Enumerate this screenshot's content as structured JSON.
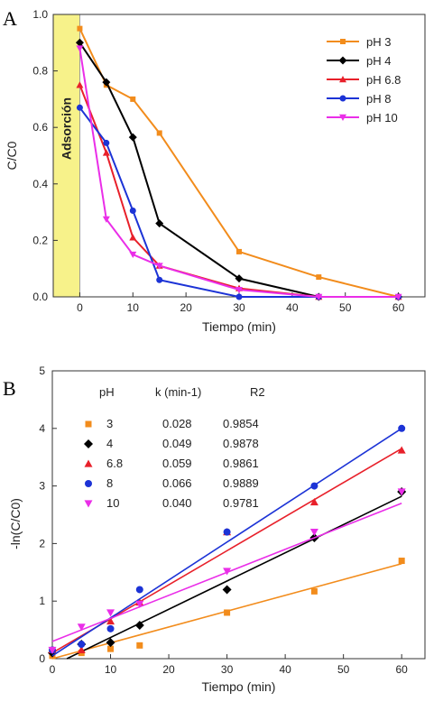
{
  "chart_data": [
    {
      "panel": "A",
      "type": "line",
      "xlabel": "Tiempo (min)",
      "ylabel": "C/C0",
      "xlim": [
        -5,
        65
      ],
      "ylim": [
        0,
        1.0
      ],
      "xticks": [
        0,
        10,
        20,
        30,
        40,
        50,
        60
      ],
      "yticks": [
        0.0,
        0.2,
        0.4,
        0.6,
        0.8,
        1.0
      ],
      "shaded_region": {
        "label": "Adsorción",
        "x_from": -5,
        "x_to": 0,
        "color": "#f7f28a"
      },
      "series": [
        {
          "name": "pH 3",
          "color": "#f28c1c",
          "marker": "square",
          "x": [
            0,
            5,
            10,
            15,
            30,
            45,
            60
          ],
          "y": [
            0.95,
            0.75,
            0.7,
            0.58,
            0.16,
            0.07,
            0.0
          ]
        },
        {
          "name": "pH 4",
          "color": "#000000",
          "marker": "diamond",
          "x": [
            0,
            5,
            10,
            15,
            30,
            45,
            60
          ],
          "y": [
            0.9,
            0.76,
            0.565,
            0.26,
            0.065,
            0.0,
            0.0
          ]
        },
        {
          "name": "pH 6.8",
          "color": "#e8202a",
          "marker": "triangle-up",
          "x": [
            0,
            5,
            10,
            15,
            30,
            45,
            60
          ],
          "y": [
            0.75,
            0.51,
            0.21,
            0.11,
            0.03,
            0.0,
            0.0
          ]
        },
        {
          "name": "pH 8",
          "color": "#1c33d6",
          "marker": "circle",
          "x": [
            0,
            5,
            10,
            15,
            30,
            45,
            60
          ],
          "y": [
            0.67,
            0.545,
            0.305,
            0.06,
            0.0,
            0.0,
            0.0
          ]
        },
        {
          "name": "pH 10",
          "color": "#ea2ee8",
          "marker": "triangle-down",
          "x": [
            0,
            5,
            10,
            15,
            30,
            45,
            60
          ],
          "y": [
            0.88,
            0.275,
            0.15,
            0.11,
            0.025,
            0.0,
            0.0
          ]
        }
      ],
      "legend_position": "top-right"
    },
    {
      "panel": "B",
      "type": "scatter",
      "xlabel": "Tiempo (min)",
      "ylabel": "-ln(C/C0)",
      "xlim": [
        0,
        64
      ],
      "ylim": [
        0,
        5
      ],
      "xticks": [
        0,
        10,
        20,
        30,
        40,
        50,
        60
      ],
      "yticks": [
        0,
        1,
        2,
        3,
        4,
        5
      ],
      "table": {
        "headers": [
          "pH",
          "k (min-1)",
          "R2"
        ],
        "rows": [
          {
            "ph": "3",
            "k": "0.028",
            "r2": "0.9854"
          },
          {
            "ph": "4",
            "k": "0.049",
            "r2": "0.9878"
          },
          {
            "ph": "6.8",
            "k": "0.059",
            "r2": "0.9861"
          },
          {
            "ph": "8",
            "k": "0.066",
            "r2": "0.9889"
          },
          {
            "ph": "10",
            "k": "0.040",
            "r2": "0.9781"
          }
        ]
      },
      "series": [
        {
          "name": "3",
          "color": "#f28c1c",
          "marker": "square",
          "x": [
            0,
            5,
            10,
            15,
            30,
            45,
            60
          ],
          "y": [
            0.05,
            0.1,
            0.17,
            0.23,
            0.8,
            1.17,
            1.7
          ],
          "fit": [
            [
              0,
              0.0
            ],
            [
              60,
              1.65
            ]
          ]
        },
        {
          "name": "4",
          "color": "#000000",
          "marker": "diamond",
          "x": [
            0,
            5,
            10,
            15,
            30,
            45,
            60
          ],
          "y": [
            0.1,
            0.25,
            0.28,
            0.58,
            1.2,
            2.1,
            2.9
          ],
          "fit": [
            [
              2.5,
              0.0
            ],
            [
              60,
              2.82
            ]
          ]
        },
        {
          "name": "6.8",
          "color": "#e8202a",
          "marker": "triangle-up",
          "x": [
            0,
            5,
            10,
            15,
            30,
            45,
            60
          ],
          "y": [
            0.15,
            0.15,
            0.65,
            0.98,
            2.2,
            2.72,
            3.62
          ],
          "fit": [
            [
              0,
              0.1
            ],
            [
              60,
              3.65
            ]
          ]
        },
        {
          "name": "8",
          "color": "#1c33d6",
          "marker": "circle",
          "x": [
            0,
            5,
            10,
            15,
            30,
            45,
            60
          ],
          "y": [
            0.15,
            0.25,
            0.52,
            1.2,
            2.2,
            3.0,
            4.0
          ],
          "fit": [
            [
              0,
              0.05
            ],
            [
              60,
              4.0
            ]
          ]
        },
        {
          "name": "10",
          "color": "#ea2ee8",
          "marker": "triangle-down",
          "x": [
            0,
            5,
            10,
            15,
            30,
            45,
            60
          ],
          "y": [
            0.15,
            0.55,
            0.8,
            0.95,
            1.52,
            2.2,
            2.9
          ],
          "fit": [
            [
              0,
              0.3
            ],
            [
              60,
              2.7
            ]
          ]
        }
      ]
    }
  ],
  "labels": {
    "panel_a": "A",
    "panel_b": "B",
    "legend_a": [
      "pH 3",
      "pH 4",
      "pH 6.8",
      "pH 8",
      "pH 10"
    ]
  }
}
